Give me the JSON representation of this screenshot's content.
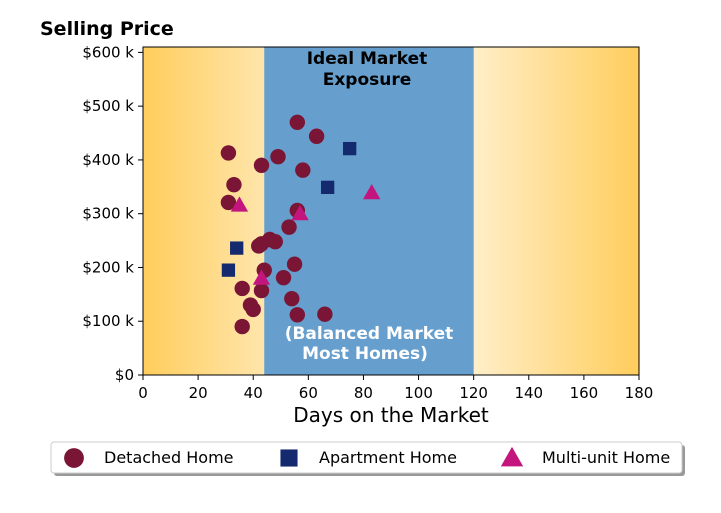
{
  "chart_data": {
    "type": "scatter",
    "title": "Selling Price",
    "xlabel": "Days on the Market",
    "ylabel": "",
    "xlim": [
      0,
      180
    ],
    "ylim": [
      0,
      610000
    ],
    "x_ticks": [
      0,
      20,
      40,
      60,
      80,
      100,
      120,
      140,
      160,
      180
    ],
    "x_tick_labels": [
      "0",
      "20",
      "40",
      "60",
      "80",
      "100",
      "120",
      "140",
      "160",
      "180"
    ],
    "y_ticks": [
      0,
      100000,
      200000,
      300000,
      400000,
      500000,
      600000
    ],
    "y_tick_labels": [
      "$0",
      "$100 k",
      "$200 k",
      "$300 k",
      "$400 k",
      "$500 k",
      "$600 k"
    ],
    "grid": false,
    "legend_position": "bottom",
    "band": {
      "x_range": [
        44,
        120
      ],
      "color": "#669fcd",
      "title_lines": [
        "Ideal Market",
        "Exposure"
      ],
      "title_color": "#000000",
      "subtitle_lines": [
        "(Balanced Market",
        "Most Homes)"
      ],
      "subtitle_color": "#ffffff"
    },
    "background_gradient": {
      "edge_color": "#ffcd5c",
      "center_color": "#ffffff"
    },
    "series": [
      {
        "name": "Detached Home",
        "marker": "circle",
        "color": "#7a1535",
        "points": [
          [
            56,
            470000
          ],
          [
            63,
            444000
          ],
          [
            31,
            413000
          ],
          [
            49,
            406000
          ],
          [
            43,
            390000
          ],
          [
            58,
            381000
          ],
          [
            33,
            354000
          ],
          [
            31,
            321000
          ],
          [
            56,
            306000
          ],
          [
            53,
            275000
          ],
          [
            46,
            252000
          ],
          [
            43,
            244000
          ],
          [
            48,
            248000
          ],
          [
            42,
            240000
          ],
          [
            55,
            206000
          ],
          [
            44,
            195000
          ],
          [
            51,
            181000
          ],
          [
            36,
            161000
          ],
          [
            43,
            157000
          ],
          [
            54,
            142000
          ],
          [
            39,
            130000
          ],
          [
            40,
            122000
          ],
          [
            56,
            112000
          ],
          [
            66,
            113000
          ],
          [
            36,
            90000
          ]
        ]
      },
      {
        "name": "Apartment Home",
        "marker": "square",
        "color": "#15296e",
        "points": [
          [
            75,
            421000
          ],
          [
            67,
            349000
          ],
          [
            34,
            236000
          ],
          [
            31,
            195000
          ]
        ]
      },
      {
        "name": "Multi-unit Home",
        "marker": "triangle",
        "color": "#c4157e",
        "points": [
          [
            83,
            339000
          ],
          [
            35,
            316000
          ],
          [
            57,
            300000
          ],
          [
            43,
            180000
          ]
        ]
      }
    ]
  }
}
